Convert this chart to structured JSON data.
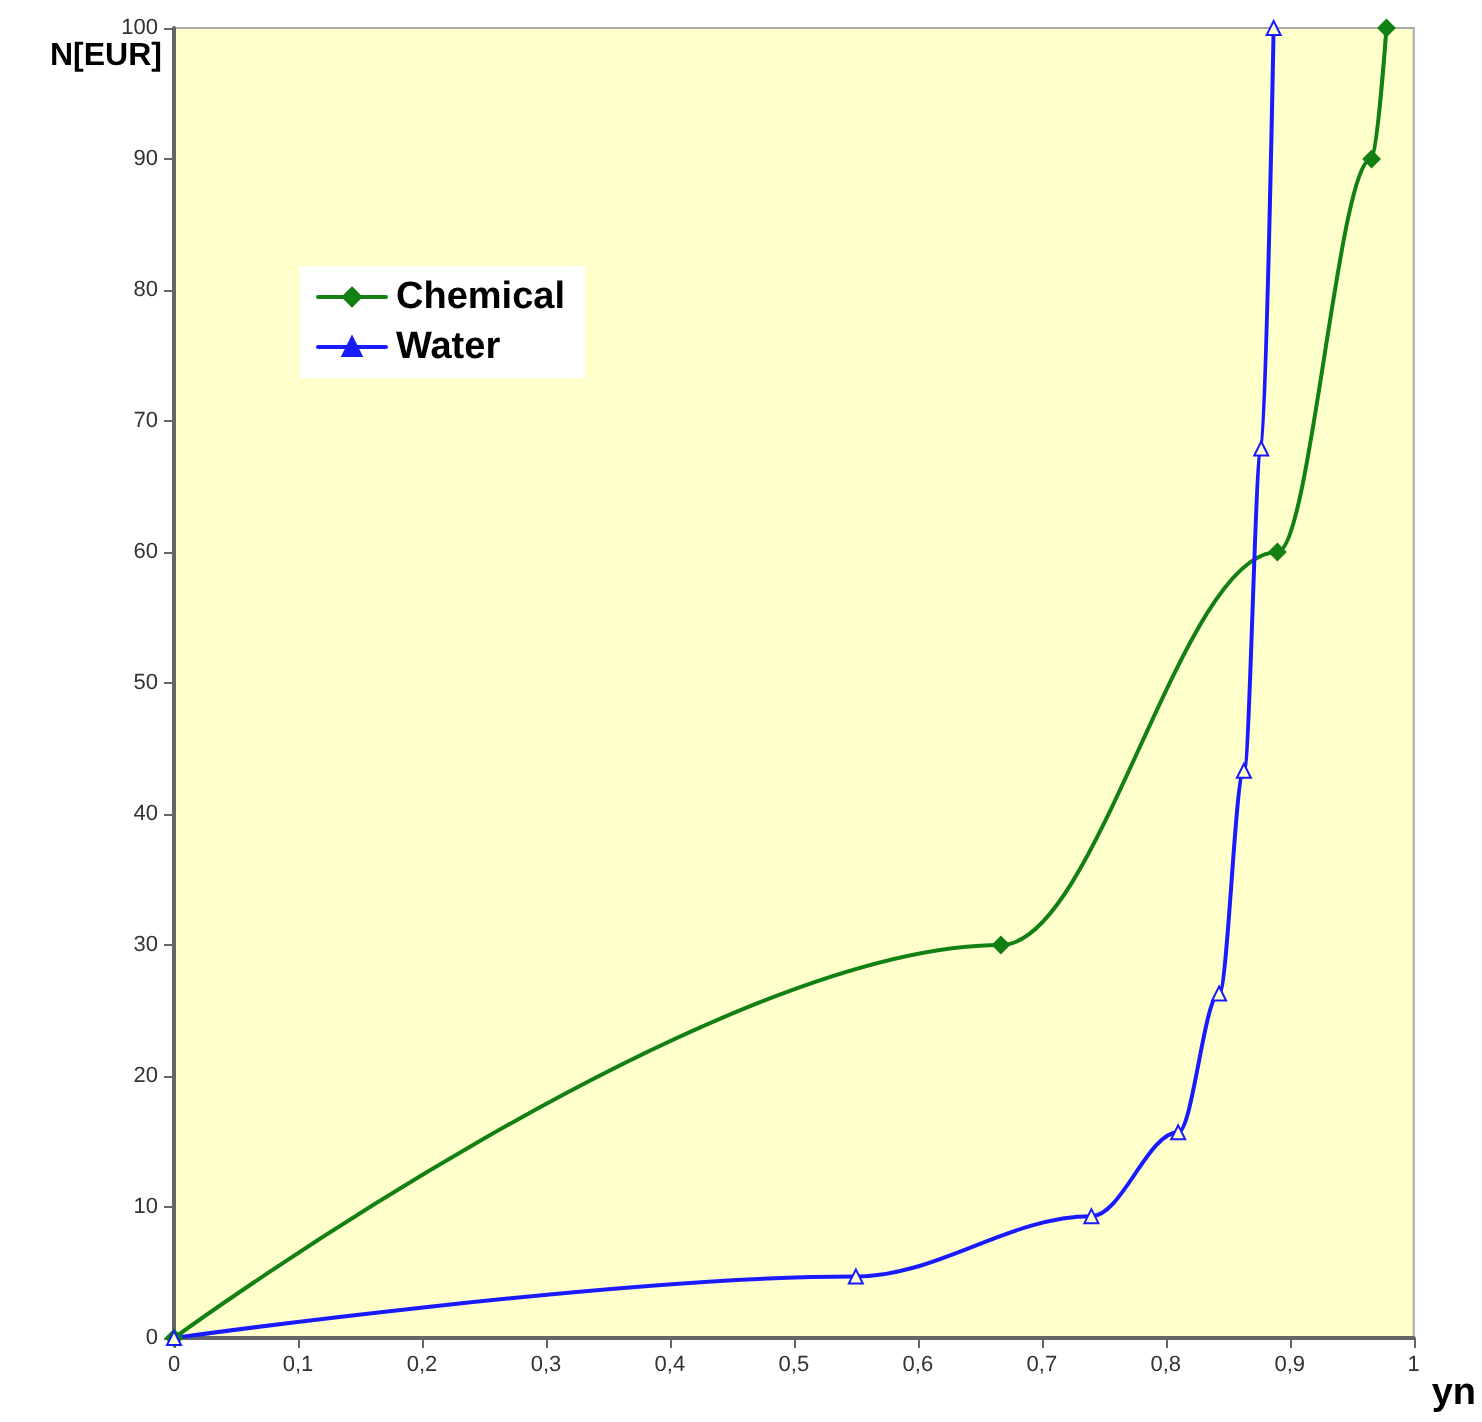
{
  "chart_data": {
    "type": "line",
    "xlabel": "yn",
    "ylabel": "N[EUR]",
    "series": [
      {
        "name": "Chemical",
        "color": "#138013",
        "marker": "diamond",
        "x": [
          0,
          0.667,
          0.89,
          0.966,
          0.978
        ],
        "values": [
          0,
          30,
          60,
          90,
          100
        ]
      },
      {
        "name": "Water",
        "color": "#1a1aff",
        "marker": "triangle",
        "x": [
          0,
          0.55,
          0.74,
          0.81,
          0.843,
          0.863,
          0.877,
          0.887
        ],
        "values": [
          0,
          4.7,
          9.3,
          15.7,
          26.3,
          43.3,
          67.9,
          100
        ]
      }
    ],
    "xlim": [
      0,
      1
    ],
    "ylim": [
      0,
      100
    ],
    "xticks": [
      0,
      {
        "value": 0.1,
        "label": "0,1"
      },
      {
        "value": 0.2,
        "label": "0,2"
      },
      {
        "value": 0.3,
        "label": "0,3"
      },
      {
        "value": 0.4,
        "label": "0,4"
      },
      {
        "value": 0.5,
        "label": "0,5"
      },
      {
        "value": 0.6,
        "label": "0,6"
      },
      {
        "value": 0.7,
        "label": "0,7"
      },
      {
        "value": 0.8,
        "label": "0,8"
      },
      {
        "value": 0.9,
        "label": "0,9"
      },
      1
    ],
    "yticks": [
      0,
      10,
      20,
      30,
      40,
      50,
      60,
      70,
      80,
      90,
      100
    ],
    "grid": false,
    "legend": "top left"
  }
}
